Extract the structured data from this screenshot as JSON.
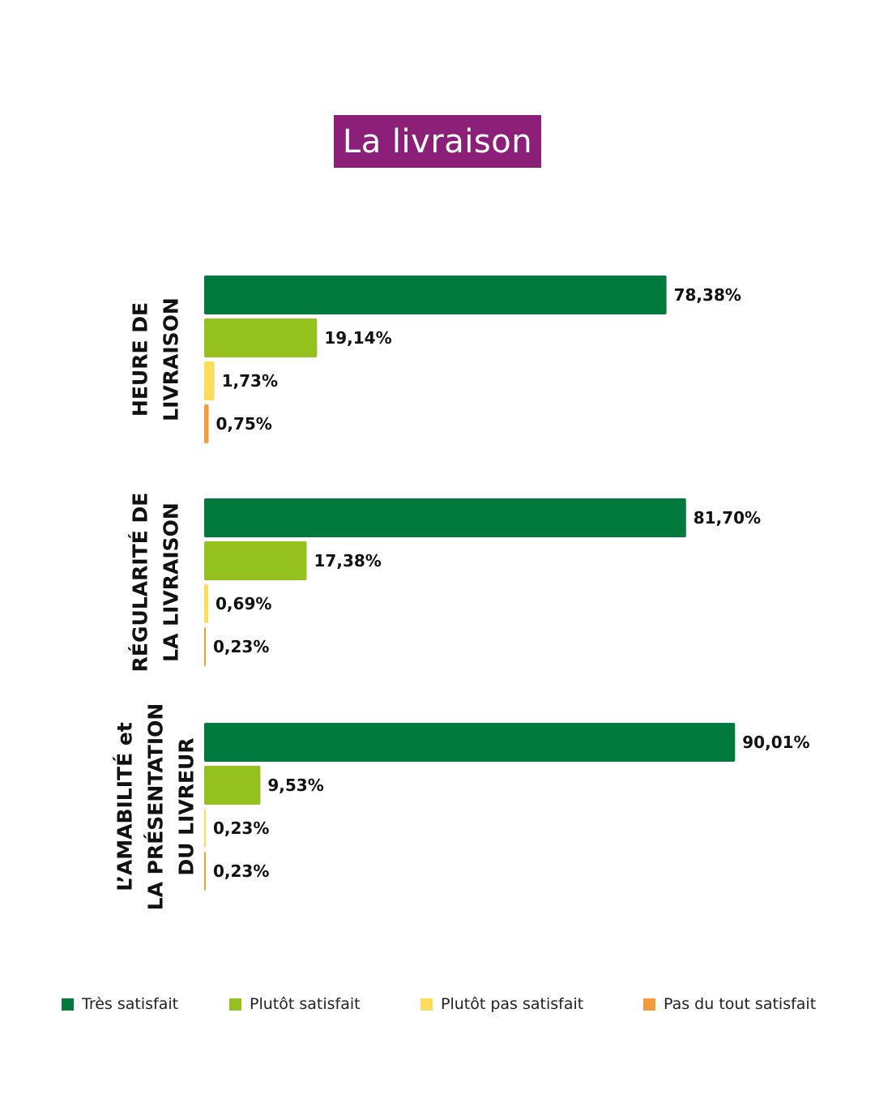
{
  "title": "La livraison",
  "colors": {
    "tres_satisfait": "#027a3e",
    "plutot_satisfait": "#95c11f",
    "plutot_pas_satisfait": "#fddc5c",
    "pas_du_tout_satisfait": "#f59b3c",
    "title_bg": "#8c1f78"
  },
  "legend": [
    {
      "label": "Très satisfait",
      "color": "#027a3e"
    },
    {
      "label": "Plutôt satisfait",
      "color": "#95c11f"
    },
    {
      "label": "Plutôt pas satisfait",
      "color": "#fddc5c"
    },
    {
      "label": "Pas du tout satisfait",
      "color": "#f59b3c"
    }
  ],
  "chart_data": {
    "type": "bar",
    "orientation": "horizontal",
    "title": "La livraison",
    "unit": "%",
    "xlim": [
      0,
      100
    ],
    "grid": false,
    "legend_position": "bottom",
    "groups": [
      {
        "label_lines": [
          "HEURE DE",
          "LIVRAISON"
        ],
        "values": [
          78.38,
          19.14,
          1.73,
          0.75
        ],
        "value_labels": [
          "78,38%",
          "19,14%",
          "1,73%",
          "0,75%"
        ]
      },
      {
        "label_lines": [
          "RÉGULARITÉ DE",
          "LA LIVRAISON"
        ],
        "values": [
          81.7,
          17.38,
          0.69,
          0.23
        ],
        "value_labels": [
          "81,70%",
          "17,38%",
          "0,69%",
          "0,23%"
        ]
      },
      {
        "label_lines": [
          "L’AMABILITÉ et",
          "LA PRÉSENTATION",
          "DU LIVREUR"
        ],
        "values": [
          90.01,
          9.53,
          0.23,
          0.23
        ],
        "value_labels": [
          "90,01%",
          "9,53%",
          "0,23%",
          "0,23%"
        ]
      }
    ],
    "series": [
      {
        "name": "Très satisfait"
      },
      {
        "name": "Plutôt satisfait"
      },
      {
        "name": "Plutôt pas satisfait"
      },
      {
        "name": "Pas du tout satisfait"
      }
    ]
  }
}
